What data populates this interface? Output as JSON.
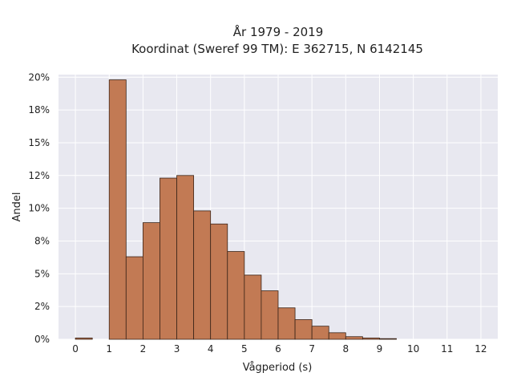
{
  "chart_data": {
    "type": "bar",
    "title_lines": [
      "År 1979 - 2019",
      "Koordinat (Sweref 99 TM): E 362715, N 6142145"
    ],
    "xlabel": "Vågperiod (s)",
    "ylabel": "Andel",
    "x_ticks": [
      "0",
      "1",
      "2",
      "3",
      "4",
      "5",
      "6",
      "7",
      "8",
      "9",
      "10",
      "11",
      "12"
    ],
    "y_ticks": [
      "0%",
      "2%",
      "5%",
      "8%",
      "10%",
      "12%",
      "15%",
      "18%",
      "20%"
    ],
    "xlim": [
      -0.5,
      12.5
    ],
    "ylim": [
      0,
      0.202
    ],
    "grid": true,
    "bin_width": 0.5,
    "bins": [
      {
        "x0": 0.0,
        "value": 0.001
      },
      {
        "x0": 1.0,
        "value": 0.198
      },
      {
        "x0": 1.5,
        "value": 0.063
      },
      {
        "x0": 2.0,
        "value": 0.089
      },
      {
        "x0": 2.5,
        "value": 0.123
      },
      {
        "x0": 3.0,
        "value": 0.125
      },
      {
        "x0": 3.5,
        "value": 0.098
      },
      {
        "x0": 4.0,
        "value": 0.088
      },
      {
        "x0": 4.5,
        "value": 0.067
      },
      {
        "x0": 5.0,
        "value": 0.049
      },
      {
        "x0": 5.5,
        "value": 0.037
      },
      {
        "x0": 6.0,
        "value": 0.024
      },
      {
        "x0": 6.5,
        "value": 0.015
      },
      {
        "x0": 7.0,
        "value": 0.01
      },
      {
        "x0": 7.5,
        "value": 0.005
      },
      {
        "x0": 8.0,
        "value": 0.002
      },
      {
        "x0": 8.5,
        "value": 0.001
      },
      {
        "x0": 9.0,
        "value": 0.0005
      }
    ],
    "colors": {
      "bar_fill": "#c27a54",
      "bar_stroke": "#3a2418",
      "plot_bg": "#e8e8f0",
      "grid": "#ffffff"
    }
  }
}
